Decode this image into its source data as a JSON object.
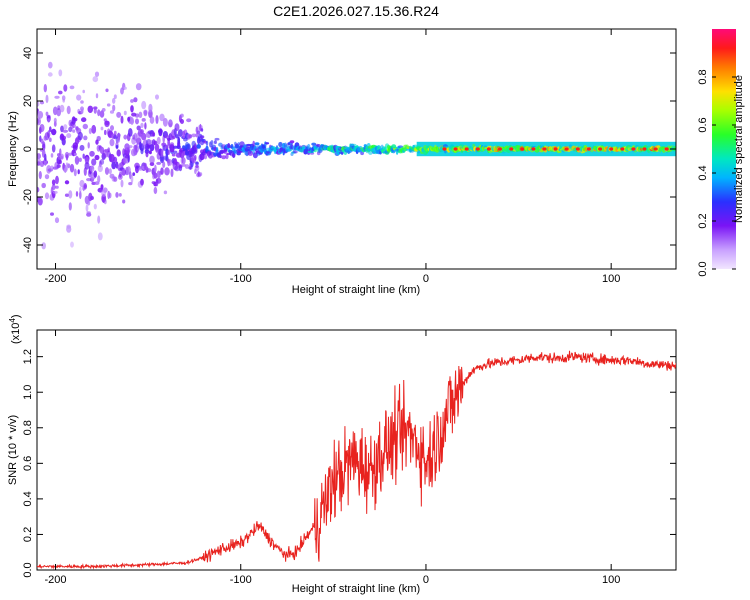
{
  "chart_data": [
    {
      "type": "heatmap",
      "title": "C2E1.2026.027.15.36.R24",
      "xlabel": "Height of straight line (km)",
      "ylabel": "Frequency (Hz)",
      "xlim": [
        -210,
        135
      ],
      "ylim": [
        -50,
        50
      ],
      "xticks": [
        -200,
        -100,
        0,
        100
      ],
      "xtick_labels": [
        "-200",
        "-100",
        "0",
        "100"
      ],
      "yticks": [
        -40,
        -20,
        0,
        20,
        40
      ],
      "ytick_labels": [
        "-40",
        "-20",
        "0",
        "20",
        "40"
      ],
      "colorbar": {
        "label": "Normalized spectral amplitude",
        "range": [
          0.0,
          1.0
        ],
        "ticks": [
          0.0,
          0.2,
          0.4,
          0.6,
          0.8
        ],
        "tick_labels": [
          "0.0",
          "0.2",
          "0.4",
          "0.6",
          "0.8"
        ]
      },
      "description_points": [
        {
          "x": -180,
          "spread_hz": 48,
          "amplitude": 0.2
        },
        {
          "x": -150,
          "spread_hz": 30,
          "amplitude": 0.22
        },
        {
          "x": -120,
          "spread_hz": 12,
          "amplitude": 0.3
        },
        {
          "x": -100,
          "spread_hz": 8,
          "amplitude": 0.35
        },
        {
          "x": -60,
          "spread_hz": 6,
          "amplitude": 0.45
        },
        {
          "x": -20,
          "spread_hz": 4,
          "amplitude": 0.6
        },
        {
          "x": 0,
          "spread_hz": 3,
          "amplitude": 0.7
        },
        {
          "x": 50,
          "spread_hz": 2,
          "amplitude": 0.8
        },
        {
          "x": 130,
          "spread_hz": 2,
          "amplitude": 0.8
        }
      ]
    },
    {
      "type": "line",
      "xlabel": "Height of straight line (km)",
      "ylabel": "SNR (10 * v/v)",
      "y_multiplier": "(x10",
      "y_multiplier_exp": "4",
      "y_multiplier_close": ")",
      "xlim": [
        -210,
        135
      ],
      "ylim": [
        0,
        1.35
      ],
      "xticks": [
        -200,
        -100,
        0,
        100
      ],
      "xtick_labels": [
        "-200",
        "-100",
        "0",
        "100"
      ],
      "yticks": [
        0.0,
        0.2,
        0.4,
        0.6,
        0.8,
        1.0,
        1.2
      ],
      "ytick_labels": [
        "0.0",
        "0.2",
        "0.4",
        "0.6",
        "0.8",
        "1.0",
        "1.2"
      ],
      "line_color": "#e8231f",
      "series": [
        {
          "name": "SNR",
          "x": [
            -210,
            -180,
            -150,
            -130,
            -120,
            -110,
            -100,
            -95,
            -90,
            -85,
            -80,
            -75,
            -70,
            -65,
            -60,
            -55,
            -50,
            -45,
            -40,
            -35,
            -30,
            -25,
            -20,
            -15,
            -10,
            -5,
            0,
            5,
            10,
            15,
            20,
            25,
            30,
            40,
            50,
            60,
            70,
            80,
            90,
            100,
            110,
            120,
            135
          ],
          "y": [
            0.02,
            0.02,
            0.03,
            0.04,
            0.07,
            0.12,
            0.15,
            0.2,
            0.25,
            0.18,
            0.12,
            0.08,
            0.1,
            0.18,
            0.25,
            0.35,
            0.5,
            0.55,
            0.62,
            0.6,
            0.55,
            0.65,
            0.7,
            0.75,
            0.78,
            0.72,
            0.6,
            0.7,
            0.85,
            0.95,
            1.05,
            1.12,
            1.15,
            1.17,
            1.18,
            1.2,
            1.19,
            1.2,
            1.19,
            1.18,
            1.18,
            1.16,
            1.15
          ]
        }
      ]
    }
  ]
}
